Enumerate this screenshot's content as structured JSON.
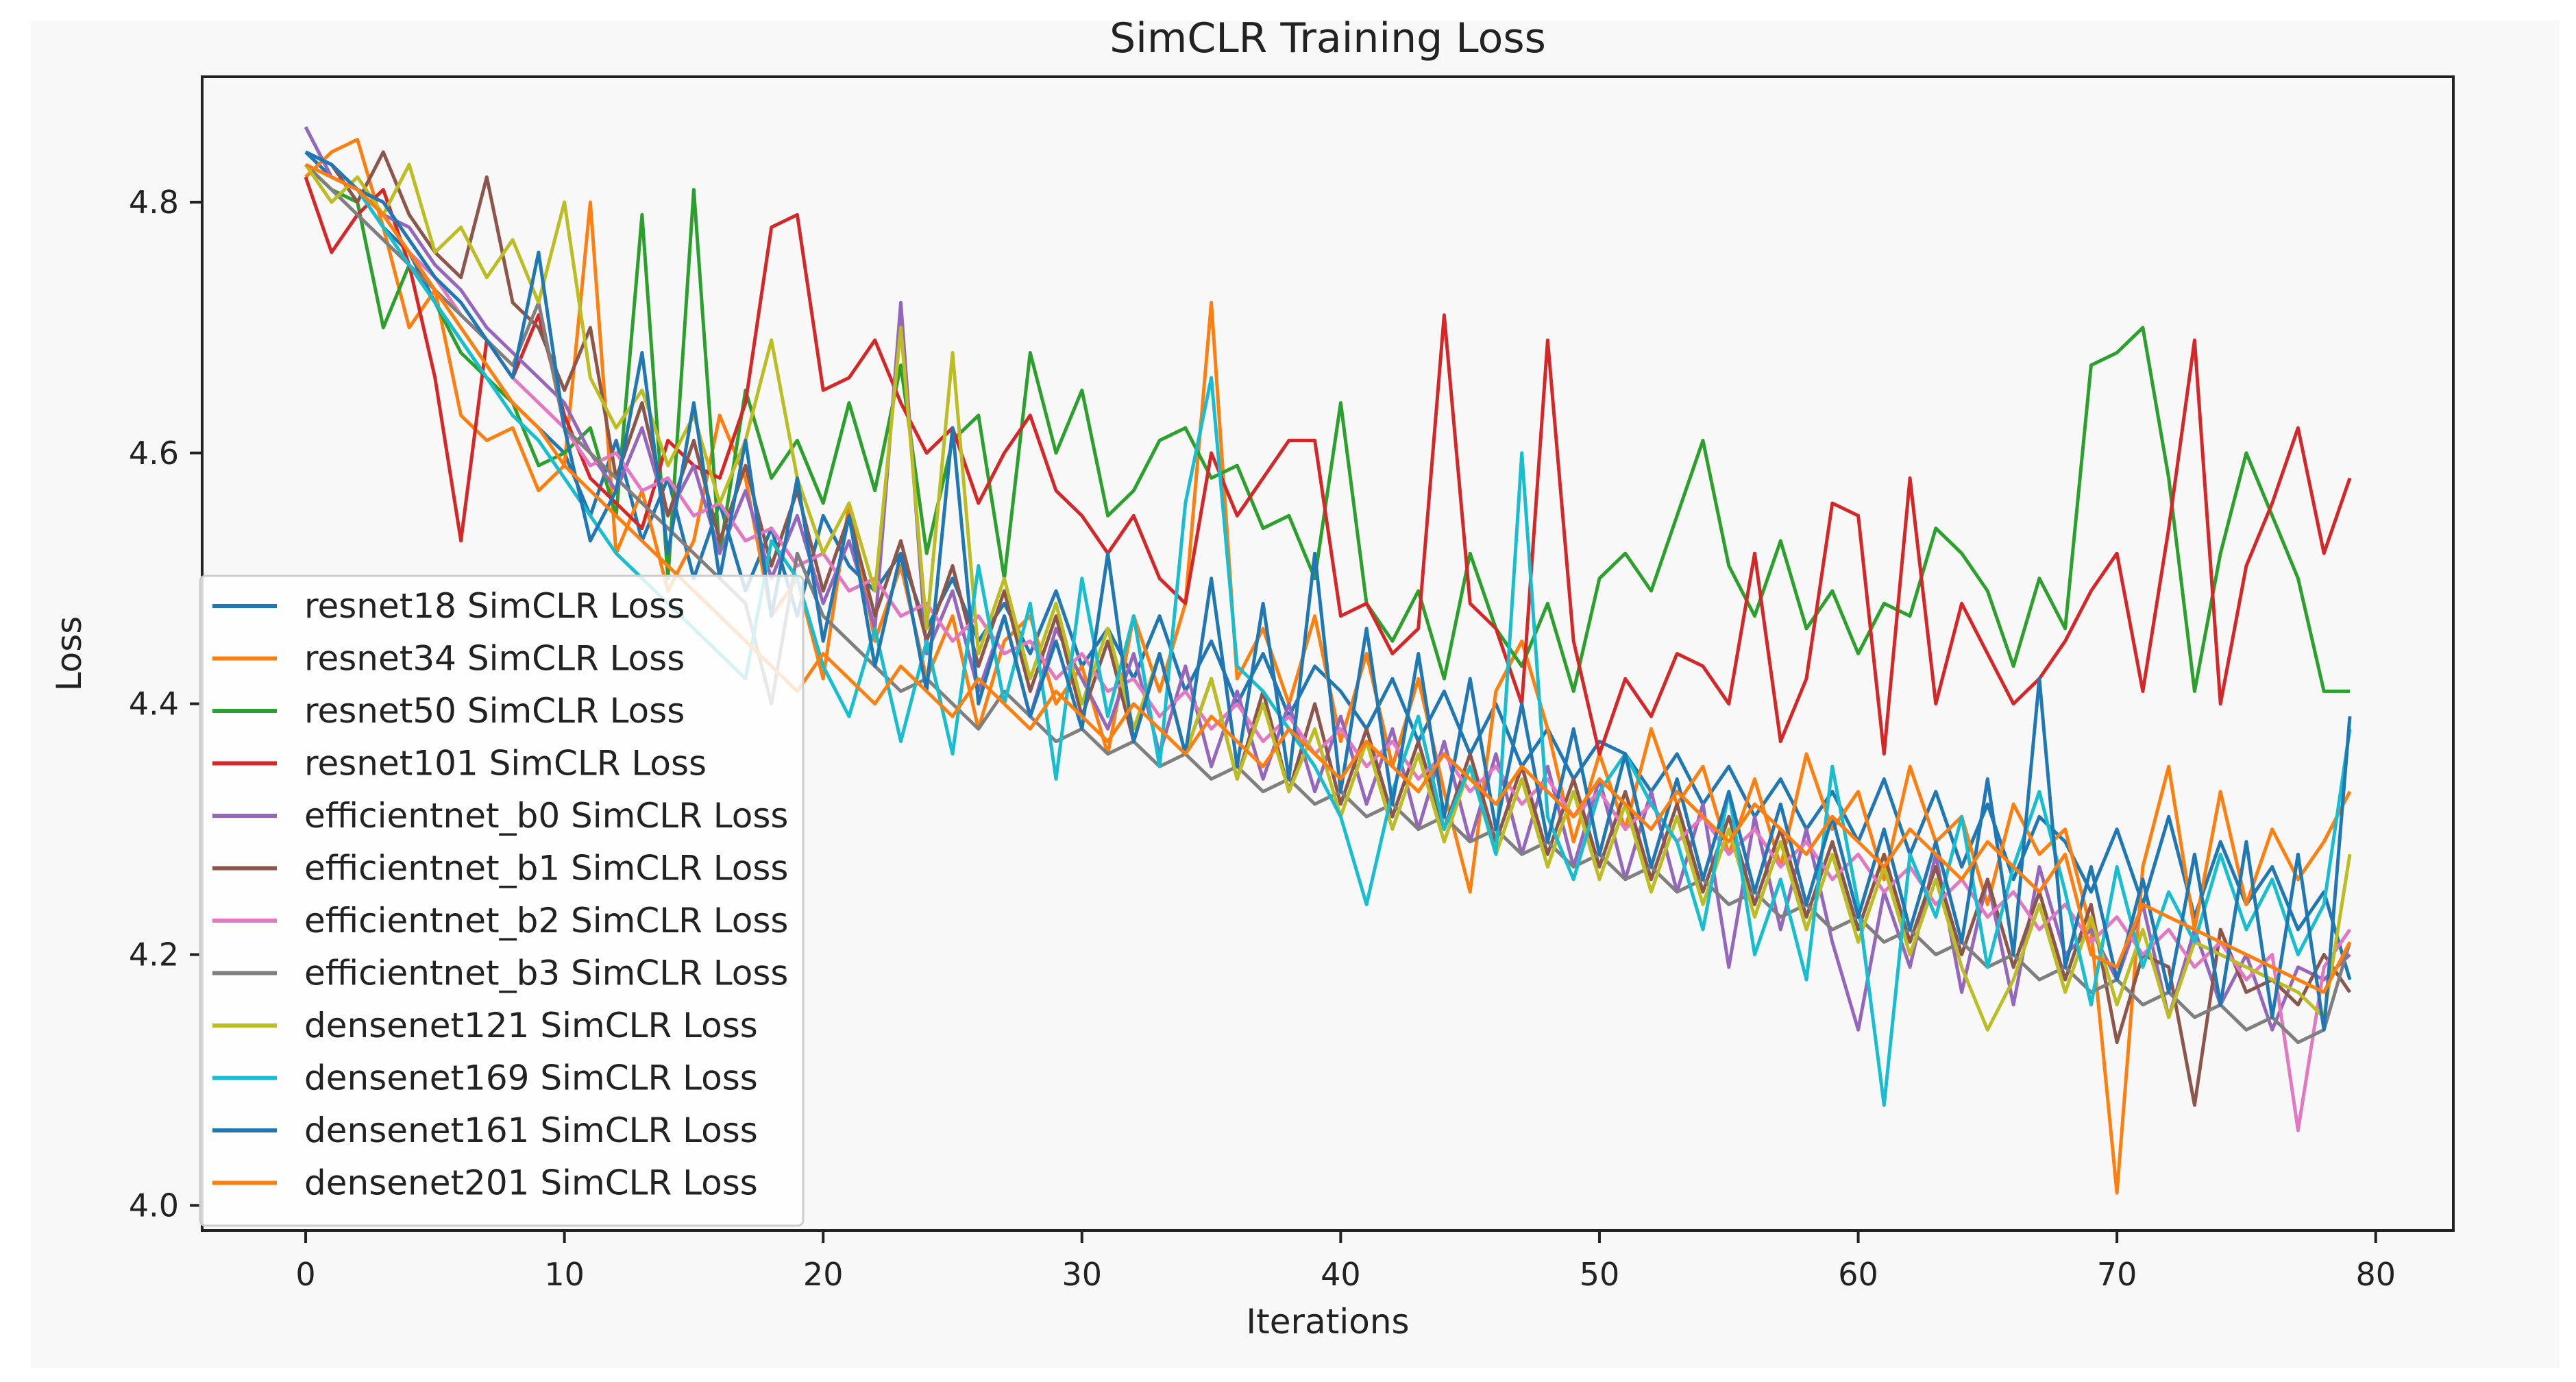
{
  "chart_data": {
    "type": "line",
    "title": "SimCLR Training Loss",
    "xlabel": "Iterations",
    "ylabel": "Loss",
    "xlim": [
      -4,
      83
    ],
    "ylim": [
      3.98,
      4.9
    ],
    "xticks": [
      0,
      10,
      20,
      30,
      40,
      50,
      60,
      70,
      80
    ],
    "yticks": [
      4.0,
      4.2,
      4.4,
      4.6,
      4.8
    ],
    "xtick_labels": [
      "0",
      "10",
      "20",
      "30",
      "40",
      "50",
      "60",
      "70",
      "80"
    ],
    "ytick_labels": [
      "4.0",
      "4.2",
      "4.4",
      "4.6",
      "4.8"
    ],
    "grid": false,
    "legend_position": "lower-left",
    "x_start": 0,
    "series": [
      {
        "name": "resnet18 SimCLR Loss",
        "color": "#1f77b4",
        "values": [
          4.84,
          4.82,
          4.81,
          4.78,
          4.76,
          4.72,
          4.69,
          4.66,
          4.64,
          4.62,
          4.6,
          4.55,
          4.61,
          4.53,
          4.58,
          4.5,
          4.56,
          4.49,
          4.54,
          4.47,
          4.55,
          4.51,
          4.49,
          4.52,
          4.46,
          4.5,
          4.45,
          4.48,
          4.44,
          4.49,
          4.43,
          4.46,
          4.42,
          4.47,
          4.41,
          4.45,
          4.4,
          4.44,
          4.39,
          4.43,
          4.41,
          4.38,
          4.42,
          4.37,
          4.41,
          4.36,
          4.4,
          4.35,
          4.38,
          4.34,
          4.37,
          4.36,
          4.33,
          4.36,
          4.32,
          4.35,
          4.31,
          4.34,
          4.3,
          4.33,
          4.29,
          4.34,
          4.28,
          4.33,
          4.27,
          4.32,
          4.26,
          4.31,
          4.29,
          4.25,
          4.3,
          4.24,
          4.31,
          4.23,
          4.29,
          4.24,
          4.27,
          4.22,
          4.25,
          4.18
        ]
      },
      {
        "name": "resnet34 SimCLR Loss",
        "color": "#ff7f0e",
        "values": [
          4.82,
          4.84,
          4.85,
          4.78,
          4.7,
          4.73,
          4.63,
          4.61,
          4.62,
          4.57,
          4.59,
          4.8,
          4.52,
          4.57,
          4.49,
          4.53,
          4.63,
          4.58,
          4.47,
          4.5,
          4.42,
          4.56,
          4.45,
          4.51,
          4.42,
          4.47,
          4.38,
          4.45,
          4.47,
          4.4,
          4.43,
          4.36,
          4.47,
          4.41,
          4.48,
          4.72,
          4.42,
          4.46,
          4.4,
          4.47,
          4.37,
          4.44,
          4.35,
          4.42,
          4.33,
          4.25,
          4.41,
          4.45,
          4.38,
          4.29,
          4.36,
          4.3,
          4.38,
          4.32,
          4.35,
          4.28,
          4.34,
          4.27,
          4.36,
          4.3,
          4.33,
          4.26,
          4.35,
          4.29,
          4.31,
          4.24,
          4.32,
          4.28,
          4.3,
          4.22,
          4.01,
          4.27,
          4.35,
          4.22,
          4.33,
          4.24,
          4.3,
          4.26,
          4.29,
          4.33
        ]
      },
      {
        "name": "resnet50 SimCLR Loss",
        "color": "#2ca02c",
        "values": [
          4.83,
          4.81,
          4.8,
          4.7,
          4.75,
          4.72,
          4.68,
          4.66,
          4.64,
          4.59,
          4.6,
          4.62,
          4.55,
          4.79,
          4.5,
          4.81,
          4.52,
          4.65,
          4.58,
          4.61,
          4.56,
          4.64,
          4.57,
          4.67,
          4.52,
          4.61,
          4.63,
          4.5,
          4.68,
          4.6,
          4.65,
          4.55,
          4.57,
          4.61,
          4.62,
          4.58,
          4.59,
          4.54,
          4.55,
          4.5,
          4.64,
          4.48,
          4.45,
          4.49,
          4.42,
          4.52,
          4.46,
          4.43,
          4.48,
          4.41,
          4.5,
          4.52,
          4.49,
          4.55,
          4.61,
          4.51,
          4.47,
          4.53,
          4.46,
          4.49,
          4.44,
          4.48,
          4.47,
          4.54,
          4.52,
          4.49,
          4.43,
          4.5,
          4.46,
          4.67,
          4.68,
          4.7,
          4.58,
          4.41,
          4.52,
          4.6,
          4.55,
          4.5,
          4.41,
          4.41
        ]
      },
      {
        "name": "resnet101 SimCLR Loss",
        "color": "#d62728",
        "values": [
          4.82,
          4.76,
          4.79,
          4.81,
          4.75,
          4.66,
          4.53,
          4.69,
          4.66,
          4.71,
          4.63,
          4.58,
          4.56,
          4.54,
          4.61,
          4.59,
          4.58,
          4.64,
          4.78,
          4.79,
          4.65,
          4.66,
          4.69,
          4.64,
          4.6,
          4.62,
          4.56,
          4.6,
          4.63,
          4.57,
          4.55,
          4.52,
          4.55,
          4.5,
          4.48,
          4.6,
          4.55,
          4.58,
          4.61,
          4.61,
          4.47,
          4.48,
          4.44,
          4.46,
          4.71,
          4.48,
          4.46,
          4.4,
          4.69,
          4.45,
          4.36,
          4.42,
          4.39,
          4.44,
          4.43,
          4.4,
          4.52,
          4.37,
          4.42,
          4.56,
          4.55,
          4.36,
          4.58,
          4.4,
          4.48,
          4.44,
          4.4,
          4.42,
          4.45,
          4.49,
          4.52,
          4.41,
          4.54,
          4.69,
          4.4,
          4.51,
          4.56,
          4.62,
          4.52,
          4.58
        ]
      },
      {
        "name": "efficientnet_b0 SimCLR Loss",
        "color": "#9467bd",
        "values": [
          4.86,
          4.82,
          4.81,
          4.79,
          4.78,
          4.75,
          4.73,
          4.7,
          4.68,
          4.66,
          4.64,
          4.6,
          4.57,
          4.62,
          4.55,
          4.59,
          4.52,
          4.57,
          4.5,
          4.55,
          4.48,
          4.53,
          4.46,
          4.72,
          4.44,
          4.49,
          4.41,
          4.47,
          4.39,
          4.46,
          4.42,
          4.38,
          4.44,
          4.36,
          4.43,
          4.35,
          4.41,
          4.34,
          4.4,
          4.33,
          4.39,
          4.32,
          4.38,
          4.3,
          4.37,
          4.29,
          4.36,
          4.28,
          4.35,
          4.27,
          4.34,
          4.26,
          4.33,
          4.25,
          4.32,
          4.19,
          4.31,
          4.22,
          4.3,
          4.21,
          4.14,
          4.25,
          4.19,
          4.28,
          4.17,
          4.26,
          4.16,
          4.27,
          4.2,
          4.22,
          4.18,
          4.24,
          4.15,
          4.22,
          4.16,
          4.2,
          4.14,
          4.19,
          4.18,
          4.2
        ]
      },
      {
        "name": "efficientnet_b1 SimCLR Loss",
        "color": "#8c564b",
        "values": [
          4.84,
          4.83,
          4.8,
          4.84,
          4.79,
          4.76,
          4.74,
          4.82,
          4.72,
          4.7,
          4.65,
          4.7,
          4.58,
          4.64,
          4.55,
          4.61,
          4.53,
          4.59,
          4.51,
          4.57,
          4.49,
          4.55,
          4.47,
          4.53,
          4.45,
          4.51,
          4.43,
          4.49,
          4.41,
          4.47,
          4.39,
          4.45,
          4.37,
          4.44,
          4.36,
          4.42,
          4.34,
          4.41,
          4.33,
          4.4,
          4.32,
          4.38,
          4.31,
          4.37,
          4.3,
          4.36,
          4.29,
          4.35,
          4.28,
          4.34,
          4.27,
          4.33,
          4.26,
          4.32,
          4.25,
          4.31,
          4.24,
          4.3,
          4.23,
          4.29,
          4.22,
          4.28,
          4.21,
          4.27,
          4.2,
          4.26,
          4.19,
          4.25,
          4.18,
          4.24,
          4.13,
          4.2,
          4.19,
          4.08,
          4.22,
          4.17,
          4.18,
          4.16,
          4.2,
          4.17
        ]
      },
      {
        "name": "efficientnet_b2 SimCLR Loss",
        "color": "#e377c2",
        "values": [
          4.83,
          4.82,
          4.81,
          4.79,
          4.76,
          4.74,
          4.71,
          4.69,
          4.66,
          4.64,
          4.62,
          4.59,
          4.6,
          4.57,
          4.58,
          4.55,
          4.56,
          4.53,
          4.54,
          4.51,
          4.52,
          4.49,
          4.5,
          4.47,
          4.48,
          4.45,
          4.47,
          4.44,
          4.45,
          4.42,
          4.44,
          4.41,
          4.42,
          4.39,
          4.41,
          4.38,
          4.4,
          4.37,
          4.39,
          4.36,
          4.38,
          4.35,
          4.37,
          4.34,
          4.36,
          4.33,
          4.35,
          4.32,
          4.34,
          4.31,
          4.33,
          4.3,
          4.32,
          4.29,
          4.31,
          4.28,
          4.3,
          4.27,
          4.29,
          4.26,
          4.28,
          4.25,
          4.27,
          4.24,
          4.26,
          4.23,
          4.25,
          4.22,
          4.24,
          4.21,
          4.23,
          4.2,
          4.22,
          4.19,
          4.21,
          4.18,
          4.2,
          4.06,
          4.19,
          4.22
        ]
      },
      {
        "name": "efficientnet_b3 SimCLR Loss",
        "color": "#7f7f7f",
        "values": [
          4.83,
          4.81,
          4.79,
          4.77,
          4.75,
          4.73,
          4.71,
          4.69,
          4.67,
          4.72,
          4.62,
          4.6,
          4.58,
          4.56,
          4.54,
          4.52,
          4.5,
          4.48,
          4.4,
          4.52,
          4.47,
          4.45,
          4.43,
          4.41,
          4.42,
          4.4,
          4.38,
          4.41,
          4.39,
          4.37,
          4.38,
          4.36,
          4.37,
          4.35,
          4.36,
          4.34,
          4.35,
          4.33,
          4.34,
          4.32,
          4.33,
          4.31,
          4.32,
          4.3,
          4.31,
          4.29,
          4.3,
          4.28,
          4.29,
          4.27,
          4.28,
          4.26,
          4.27,
          4.25,
          4.26,
          4.24,
          4.25,
          4.23,
          4.24,
          4.22,
          4.23,
          4.21,
          4.22,
          4.2,
          4.21,
          4.19,
          4.2,
          4.18,
          4.19,
          4.17,
          4.18,
          4.16,
          4.17,
          4.15,
          4.16,
          4.14,
          4.15,
          4.13,
          4.14,
          4.21
        ]
      },
      {
        "name": "densenet121 SimCLR Loss",
        "color": "#bcbd22",
        "values": [
          4.83,
          4.8,
          4.82,
          4.79,
          4.83,
          4.76,
          4.78,
          4.74,
          4.77,
          4.72,
          4.8,
          4.66,
          4.62,
          4.65,
          4.59,
          4.63,
          4.56,
          4.61,
          4.69,
          4.58,
          4.52,
          4.56,
          4.49,
          4.7,
          4.46,
          4.68,
          4.44,
          4.5,
          4.42,
          4.48,
          4.4,
          4.46,
          4.38,
          4.44,
          4.36,
          4.42,
          4.34,
          4.4,
          4.33,
          4.38,
          4.31,
          4.37,
          4.3,
          4.36,
          4.29,
          4.35,
          4.28,
          4.34,
          4.27,
          4.33,
          4.26,
          4.32,
          4.25,
          4.31,
          4.24,
          4.3,
          4.23,
          4.29,
          4.22,
          4.28,
          4.21,
          4.27,
          4.2,
          4.26,
          4.19,
          4.14,
          4.18,
          4.24,
          4.17,
          4.23,
          4.16,
          4.22,
          4.15,
          4.21,
          4.2,
          4.19,
          4.18,
          4.17,
          4.15,
          4.28
        ]
      },
      {
        "name": "densenet169 SimCLR Loss",
        "color": "#17becf",
        "values": [
          4.84,
          4.83,
          4.81,
          4.78,
          4.75,
          4.72,
          4.69,
          4.66,
          4.63,
          4.61,
          4.58,
          4.55,
          4.52,
          4.5,
          4.48,
          4.46,
          4.44,
          4.42,
          4.53,
          4.5,
          4.43,
          4.39,
          4.46,
          4.37,
          4.45,
          4.36,
          4.51,
          4.4,
          4.48,
          4.34,
          4.5,
          4.39,
          4.47,
          4.35,
          4.56,
          4.66,
          4.43,
          4.41,
          4.38,
          4.35,
          4.31,
          4.24,
          4.33,
          4.39,
          4.3,
          4.35,
          4.28,
          4.6,
          4.31,
          4.26,
          4.33,
          4.36,
          4.32,
          4.29,
          4.22,
          4.33,
          4.2,
          4.26,
          4.18,
          4.35,
          4.24,
          4.08,
          4.28,
          4.23,
          4.31,
          4.19,
          4.27,
          4.33,
          4.25,
          4.16,
          4.27,
          4.19,
          4.25,
          4.21,
          4.28,
          4.22,
          4.26,
          4.2,
          4.24,
          4.38
        ]
      },
      {
        "name": "densenet161 SimCLR Loss",
        "color": "#1f77b4",
        "values": [
          4.84,
          4.83,
          4.81,
          4.8,
          4.77,
          4.74,
          4.72,
          4.69,
          4.66,
          4.76,
          4.62,
          4.53,
          4.57,
          4.68,
          4.52,
          4.64,
          4.5,
          4.61,
          4.47,
          4.58,
          4.45,
          4.55,
          4.43,
          4.52,
          4.41,
          4.62,
          4.4,
          4.47,
          4.39,
          4.45,
          4.38,
          4.52,
          4.37,
          4.44,
          4.36,
          4.5,
          4.35,
          4.48,
          4.34,
          4.52,
          4.33,
          4.46,
          4.32,
          4.44,
          4.31,
          4.42,
          4.3,
          4.4,
          4.29,
          4.38,
          4.28,
          4.36,
          4.27,
          4.34,
          4.26,
          4.33,
          4.25,
          4.32,
          4.24,
          4.31,
          4.23,
          4.3,
          4.22,
          4.29,
          4.21,
          4.34,
          4.2,
          4.42,
          4.19,
          4.27,
          4.18,
          4.26,
          4.17,
          4.28,
          4.16,
          4.29,
          4.15,
          4.28,
          4.14,
          4.39
        ]
      },
      {
        "name": "densenet201 SimCLR Loss",
        "color": "#ff7f0e",
        "values": [
          4.83,
          4.82,
          4.81,
          4.79,
          4.76,
          4.73,
          4.7,
          4.67,
          4.64,
          4.62,
          4.59,
          4.57,
          4.55,
          4.53,
          4.51,
          4.49,
          4.47,
          4.45,
          4.43,
          4.41,
          4.44,
          4.42,
          4.4,
          4.43,
          4.41,
          4.39,
          4.42,
          4.4,
          4.38,
          4.41,
          4.39,
          4.37,
          4.4,
          4.38,
          4.36,
          4.39,
          4.37,
          4.35,
          4.38,
          4.36,
          4.34,
          4.37,
          4.35,
          4.33,
          4.36,
          4.34,
          4.32,
          4.35,
          4.33,
          4.31,
          4.34,
          4.32,
          4.3,
          4.33,
          4.31,
          4.29,
          4.32,
          4.3,
          4.28,
          4.31,
          4.29,
          4.27,
          4.3,
          4.28,
          4.26,
          4.29,
          4.27,
          4.25,
          4.28,
          4.2,
          4.19,
          4.24,
          4.23,
          4.22,
          4.21,
          4.2,
          4.19,
          4.18,
          4.17,
          4.21
        ]
      }
    ]
  }
}
